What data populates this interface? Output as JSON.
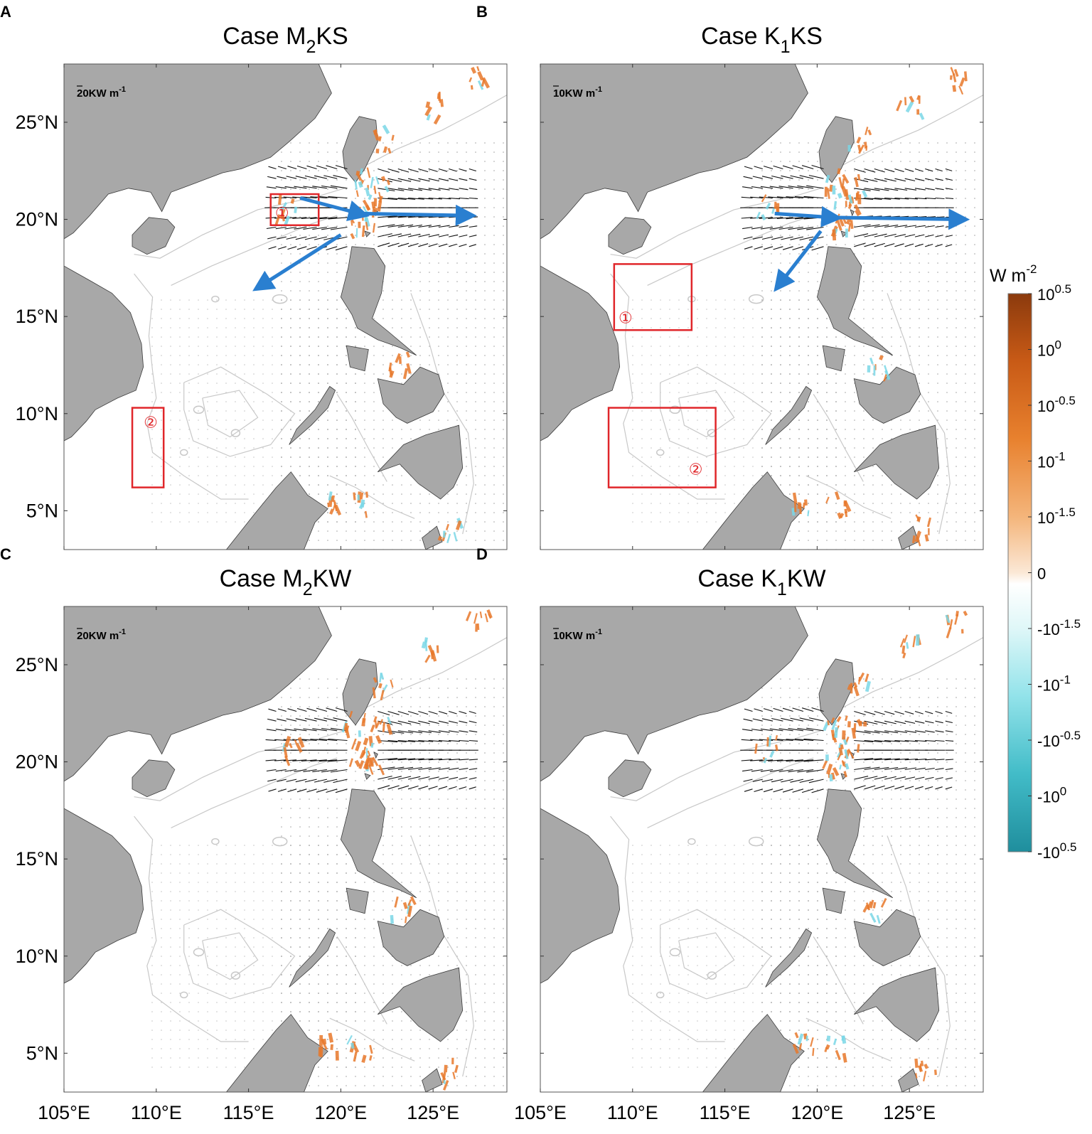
{
  "panels": [
    {
      "letter": "A",
      "title_main": "Case M",
      "title_sub": "2",
      "title_end": "KS",
      "scale_label": "20KW m",
      "scale_exp": "-1",
      "boxes": [
        {
          "label": "①"
        },
        {
          "label": "②"
        }
      ]
    },
    {
      "letter": "B",
      "title_main": "Case K",
      "title_sub": "1",
      "title_end": "KS",
      "scale_label": "10KW m",
      "scale_exp": "-1",
      "boxes": [
        {
          "label": "①"
        },
        {
          "label": "②"
        }
      ]
    },
    {
      "letter": "C",
      "title_main": "Case M",
      "title_sub": "2",
      "title_end": "KW",
      "scale_label": "20KW m",
      "scale_exp": "-1",
      "boxes": []
    },
    {
      "letter": "D",
      "title_main": "Case K",
      "title_sub": "1",
      "title_end": "KW",
      "scale_label": "10KW m",
      "scale_exp": "-1",
      "boxes": []
    }
  ],
  "axes": {
    "lon_ticks": [
      "105°E",
      "110°E",
      "115°E",
      "120°E",
      "125°E"
    ],
    "lat_ticks": [
      "25°N",
      "20°N",
      "15°N",
      "10°N",
      "5°N"
    ],
    "lon_range": [
      105,
      129
    ],
    "lat_range": [
      3,
      28
    ]
  },
  "colorbar": {
    "unit_main": "W m",
    "unit_exp": "-2",
    "ticks": [
      {
        "base": "10",
        "exp": "0.5"
      },
      {
        "base": "10",
        "exp": "0"
      },
      {
        "base": "10",
        "exp": "-0.5"
      },
      {
        "base": "10",
        "exp": "-1"
      },
      {
        "base": "10",
        "exp": "-1.5"
      },
      {
        "base": "0",
        "exp": ""
      },
      {
        "base": "-10",
        "exp": "-1.5"
      },
      {
        "base": "-10",
        "exp": "-1"
      },
      {
        "base": "-10",
        "exp": "-0.5"
      },
      {
        "base": "-10",
        "exp": "0"
      },
      {
        "base": "-10",
        "exp": "0.5"
      }
    ],
    "colors": [
      "#8b3a0d",
      "#d8651f",
      "#f2a660",
      "#f8d7b8",
      "#ffffff",
      "#c9f1f3",
      "#6fd6e0",
      "#2aa7b5",
      "#1f8e9d"
    ]
  },
  "colors": {
    "land": "#a8a8a8",
    "sea": "#ffffff",
    "positive": "#e8782a",
    "negative": "#7ad7e6",
    "box": "#e0262a",
    "arrow": "#2a7fd0",
    "contour": "#c8c8c8"
  }
}
